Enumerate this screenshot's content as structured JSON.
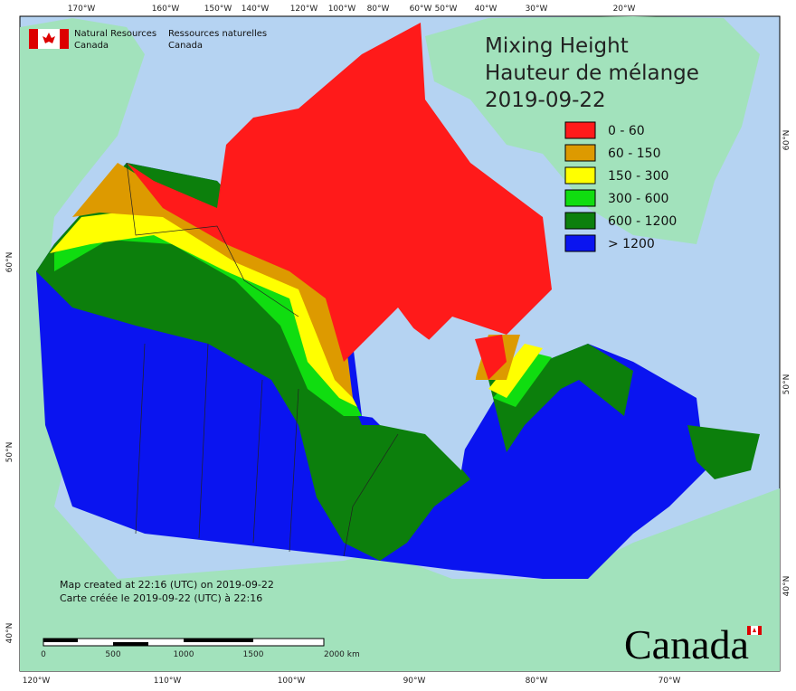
{
  "header": {
    "agency_en": "Natural Resources",
    "agency_en_2": "Canada",
    "agency_fr": "Ressources naturelles",
    "agency_fr_2": "Canada"
  },
  "title": [
    "Mixing Height",
    "Hauteur de mélange",
    "2019-09-22"
  ],
  "legend": {
    "items": [
      {
        "label": "0 - 60",
        "color": "#ff1a1a"
      },
      {
        "label": "60 - 150",
        "color": "#dd9a00"
      },
      {
        "label": "150 - 300",
        "color": "#ffff00"
      },
      {
        "label": "300 - 600",
        "color": "#10dd10"
      },
      {
        "label": "600 - 1200",
        "color": "#0c7f0c"
      },
      {
        "label": "> 1200",
        "color": "#0a14f0"
      }
    ]
  },
  "graticule": {
    "top": [
      "170°W",
      "160°W",
      "150°W",
      "140°W",
      "120°W",
      "100°W",
      "80°W",
      "60°W",
      "50°W",
      "40°W",
      "30°W",
      "20°W"
    ],
    "bottom": [
      "120°W",
      "110°W",
      "100°W",
      "90°W",
      "80°W",
      "70°W"
    ],
    "left": [
      "60°N",
      "50°N",
      "40°N"
    ],
    "right": [
      "60°N",
      "50°N",
      "40°N"
    ]
  },
  "credits": [
    "Map created at 22:16 (UTC) on 2019-09-22",
    "Carte créée le 2019-09-22 (UTC) à 22:16"
  ],
  "scale_bar": [
    "0",
    "500",
    "1000",
    "1500",
    "2000 km"
  ],
  "wordmark": "Canada"
}
